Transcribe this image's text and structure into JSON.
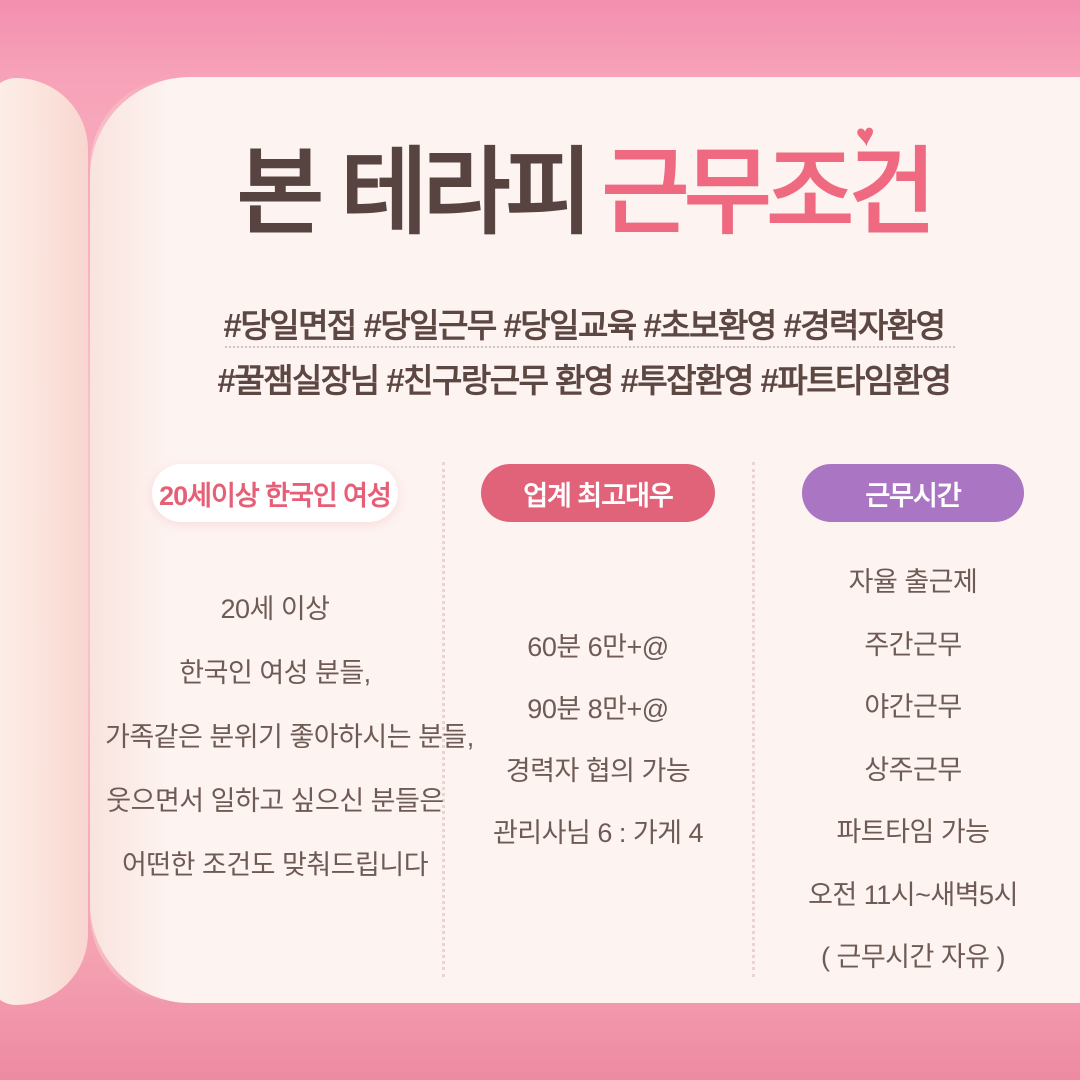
{
  "title": {
    "prefix": "본 테라피",
    "highlight": "근무조건",
    "heart": "♥"
  },
  "hashtags": {
    "line1": "#당일면접 #당일근무 #당일교육 #초보환영 #경력자환영",
    "line2": "#꿀잼실장님 #친구랑근무 환영 #투잡환영 #파트타임환영"
  },
  "columns": [
    {
      "badge": "20세이상 한국인 여성",
      "lines": [
        "20세 이상",
        "한국인 여성 분들,",
        "가족같은 분위기 좋아하시는 분들,",
        "웃으면서 일하고 싶으신 분들은",
        "어떤한 조건도 맞춰드립니다"
      ]
    },
    {
      "badge": "업계 최고대우",
      "lines": [
        "60분 6만+@",
        "90분 8만+@",
        "경력자 협의 가능",
        "관리사님 6 : 가게 4"
      ]
    },
    {
      "badge": "근무시간",
      "lines": [
        "자율 출근제",
        "주간근무",
        "야간근무",
        "상주근무",
        "파트타임 가능",
        "오전 11시~새벽5시",
        "( 근무시간 자유 )"
      ]
    }
  ],
  "colors": {
    "background_top": "#f38fb0",
    "background_bottom": "#ee8aa3",
    "page_cream": "#fdf3f0",
    "title_brown": "#574340",
    "title_pink": "#ef6a81",
    "hashtag_text": "#5d4743",
    "body_text": "#6f5b55",
    "badge1_bg": "#ffffff",
    "badge1_text": "#e75f77",
    "badge2_bg": "#e16379",
    "badge3_bg": "#aa75c3",
    "badge_text_light": "#ffffff"
  }
}
